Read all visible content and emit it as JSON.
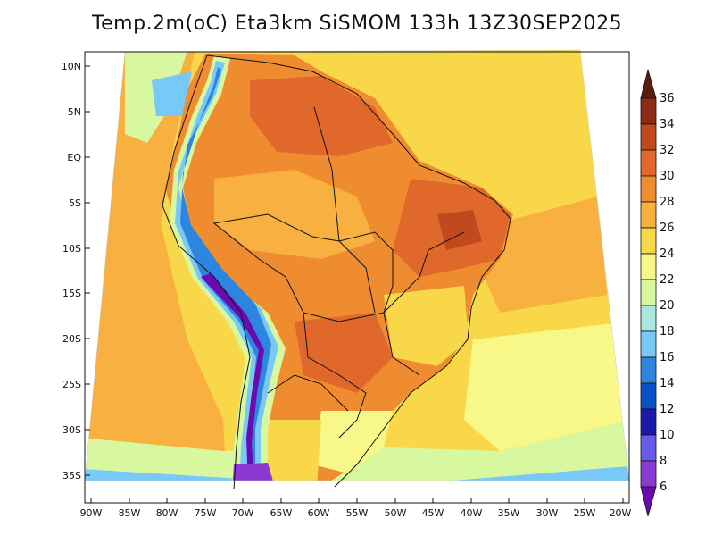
{
  "title": "Temp.2m(oC) Eta3km SiSMOM 133h 13Z30SEP2025",
  "lat_ticks": [
    "10N",
    "5N",
    "EQ",
    "5S",
    "10S",
    "15S",
    "20S",
    "25S",
    "30S",
    "35S"
  ],
  "lon_ticks": [
    "90W",
    "85W",
    "80W",
    "75W",
    "70W",
    "65W",
    "60W",
    "55W",
    "50W",
    "45W",
    "40W",
    "35W",
    "30W",
    "25W",
    "20W"
  ],
  "colorbar": {
    "labels": [
      "6",
      "8",
      "10",
      "12",
      "14",
      "16",
      "18",
      "20",
      "22",
      "24",
      "26",
      "28",
      "30",
      "32",
      "34",
      "36"
    ],
    "colors": [
      "#6a0ab0",
      "#8a3ad0",
      "#6a5ae8",
      "#1c1aa8",
      "#0a50c8",
      "#2c86e0",
      "#78c8f8",
      "#a8e8e0",
      "#d8f8a0",
      "#f8f888",
      "#f8d848",
      "#f8b040",
      "#f08c30",
      "#e0682a",
      "#c04a1e",
      "#8c2c14",
      "#5a1c0c"
    ]
  }
}
